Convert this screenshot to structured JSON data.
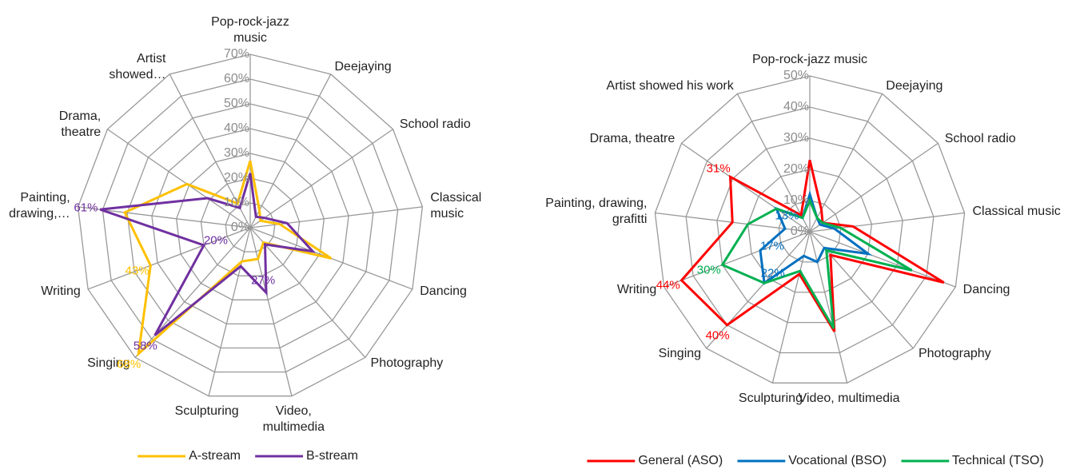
{
  "chart_data": [
    {
      "type": "radar",
      "categories": [
        "Pop-rock-jazz music",
        "Deejaying",
        "School radio",
        "Classical music",
        "Dancing",
        "Photography",
        "Video, multimedia",
        "Sculpturing",
        "Singing",
        "Writing",
        "Painting, drawing,…",
        "Drama, theatre",
        "Artist showed…"
      ],
      "ylim": [
        0,
        70
      ],
      "yticks": [
        {
          "value": 0,
          "label": "0%"
        },
        {
          "value": 10,
          "label": "10%"
        },
        {
          "value": 20,
          "label": "20%"
        },
        {
          "value": 30,
          "label": "30%"
        },
        {
          "value": 40,
          "label": "40%"
        },
        {
          "value": 50,
          "label": "50%"
        },
        {
          "value": 60,
          "label": "60%"
        },
        {
          "value": 70,
          "label": "70%"
        }
      ],
      "legend": "bottom",
      "series": [
        {
          "name": "A-stream",
          "color": "#ffc000",
          "values": [
            27,
            8,
            5,
            12,
            35,
            8,
            13,
            14,
            68,
            43,
            51,
            31,
            11
          ],
          "value_labels": [
            null,
            null,
            null,
            null,
            null,
            null,
            null,
            null,
            "68%",
            "43%",
            null,
            null,
            null
          ]
        },
        {
          "name": "B-stream",
          "color": "#7030a0",
          "values": [
            22,
            5,
            7,
            15,
            27,
            9,
            27,
            16,
            58,
            20,
            61,
            21,
            9
          ],
          "value_labels": [
            null,
            null,
            null,
            null,
            null,
            null,
            "27%",
            null,
            "58%",
            "20%",
            "61%",
            null,
            null
          ]
        }
      ]
    },
    {
      "type": "radar",
      "categories": [
        "Pop-rock-jazz music",
        "Deejaying",
        "School radio",
        "Classical music",
        "Dancing",
        "Photography",
        "Video, multimedia",
        "Sculpturing",
        "Singing",
        "Writing",
        "Painting, drawing, grafitti",
        "Drama, theatre",
        "Artist showed his work"
      ],
      "ylim": [
        0,
        50
      ],
      "yticks": [
        {
          "value": 0,
          "label": "0%"
        },
        {
          "value": 10,
          "label": "10%"
        },
        {
          "value": 20,
          "label": "20%"
        },
        {
          "value": 30,
          "label": "30%"
        },
        {
          "value": 40,
          "label": "40%"
        },
        {
          "value": 50,
          "label": "50%"
        }
      ],
      "legend": "bottom",
      "series": [
        {
          "name": "General (ASO)",
          "color": "#ff0000",
          "values": [
            23,
            8,
            5,
            14,
            46,
            10,
            33,
            14,
            40,
            44,
            25,
            31,
            6
          ],
          "value_labels": [
            null,
            null,
            null,
            null,
            null,
            null,
            null,
            null,
            "40%",
            "44%",
            null,
            "31%",
            null
          ]
        },
        {
          "name": "Vocational (BSO)",
          "color": "#0070c0",
          "values": [
            12,
            5,
            4,
            8,
            20,
            7,
            10,
            8,
            22,
            17,
            8,
            13,
            5
          ],
          "value_labels": [
            null,
            null,
            null,
            null,
            null,
            null,
            null,
            null,
            "22%",
            "17%",
            null,
            "13%",
            null
          ]
        },
        {
          "name": "Technical (TSO)",
          "color": "#00b050",
          "values": [
            10,
            5,
            5,
            10,
            35,
            8,
            32,
            13,
            22,
            30,
            20,
            13,
            5
          ],
          "value_labels": [
            null,
            null,
            null,
            null,
            null,
            null,
            null,
            null,
            null,
            "30%",
            null,
            null,
            null
          ]
        }
      ]
    }
  ]
}
